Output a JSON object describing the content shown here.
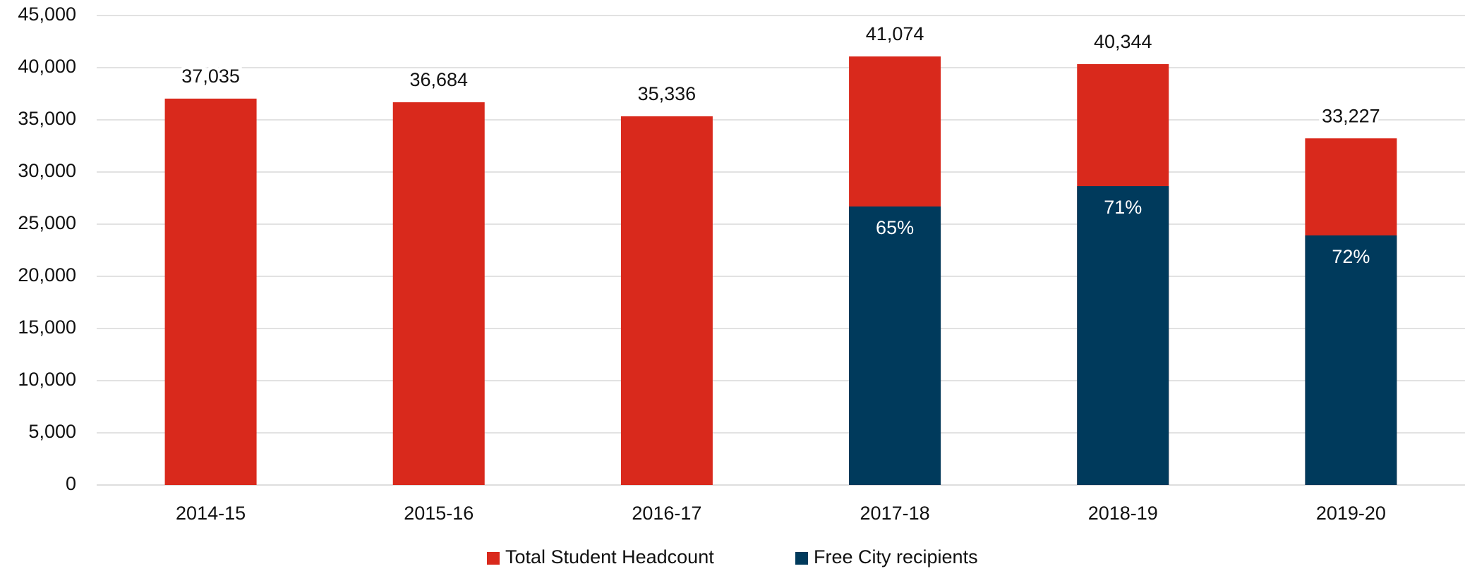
{
  "chart_data": {
    "type": "bar",
    "categories": [
      "2014-15",
      "2015-16",
      "2016-17",
      "2017-18",
      "2018-19",
      "2019-20"
    ],
    "series": [
      {
        "name": "Total Student Headcount",
        "color": "#d9291c",
        "values": [
          37035,
          36684,
          35336,
          41074,
          40344,
          33227
        ],
        "value_labels": [
          "37,035",
          "36,684",
          "35,336",
          "41,074",
          "40,344",
          "33,227"
        ]
      },
      {
        "name": "Free City recipients",
        "color": "#003a5c",
        "values": [
          null,
          null,
          null,
          26698,
          28644,
          23923
        ],
        "share_labels": [
          null,
          null,
          null,
          "65%",
          "71%",
          "72%"
        ]
      }
    ],
    "ylim": [
      0,
      45000
    ],
    "yticks": [
      {
        "value": 0,
        "label": "0"
      },
      {
        "value": 5000,
        "label": "5,000"
      },
      {
        "value": 10000,
        "label": "10,000"
      },
      {
        "value": 15000,
        "label": "15,000"
      },
      {
        "value": 20000,
        "label": "20,000"
      },
      {
        "value": 25000,
        "label": "25,000"
      },
      {
        "value": 30000,
        "label": "30,000"
      },
      {
        "value": 35000,
        "label": "35,000"
      },
      {
        "value": 40000,
        "label": "40,000"
      },
      {
        "value": 45000,
        "label": "45,000"
      }
    ],
    "grid": true,
    "legend": "bottom"
  }
}
